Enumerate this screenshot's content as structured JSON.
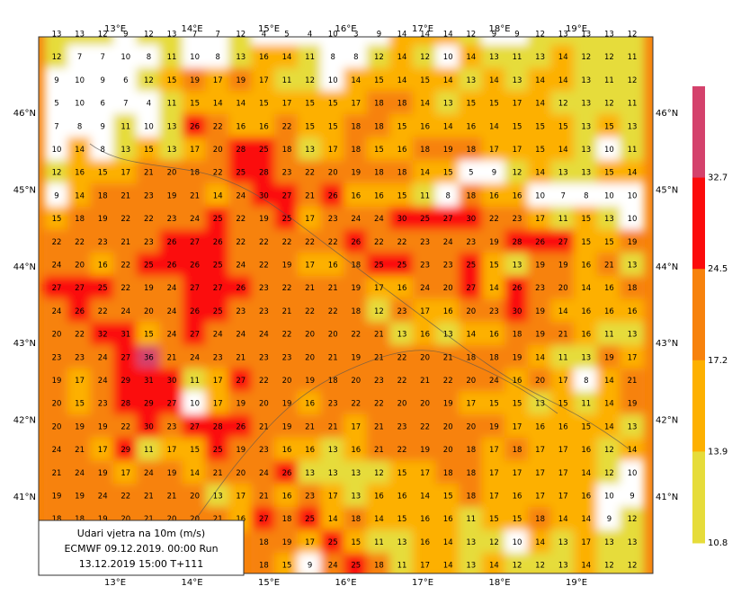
{
  "map": {
    "lon_labels": [
      "13°E",
      "14°E",
      "15°E",
      "16°E",
      "17°E",
      "18°E",
      "19°E"
    ],
    "lat_labels": [
      "46°N",
      "45°N",
      "44°N",
      "43°N",
      "42°N",
      "41°N"
    ],
    "legend": [
      "Udari vjetra na 10m (m/s)",
      "ECMWF 09.12.2019.  00:00 Run",
      "13.12.2019 15:00  T+111"
    ],
    "colorbar": {
      "labels": [
        "32.7",
        "24.5",
        "17.2",
        "13.9",
        "10.8"
      ],
      "colors": [
        "#d4426c",
        "#fb0b0b",
        "#f7820c",
        "#fdb000",
        "#e6dc3a"
      ]
    },
    "grid": {
      "rows": [
        [
          13,
          13,
          12,
          9,
          12,
          13,
          7,
          7,
          12,
          4,
          5,
          4,
          10,
          3,
          9,
          14,
          14,
          14,
          12,
          9,
          9,
          12,
          13,
          13,
          13,
          12
        ],
        [
          12,
          7,
          7,
          10,
          8,
          11,
          10,
          8,
          13,
          16,
          14,
          11,
          8,
          8,
          12,
          14,
          12,
          10,
          14,
          13,
          11,
          13,
          14,
          12,
          12,
          11
        ],
        [
          9,
          10,
          9,
          6,
          12,
          15,
          19,
          17,
          19,
          17,
          11,
          12,
          10,
          14,
          15,
          14,
          15,
          14,
          13,
          14,
          13,
          14,
          14,
          13,
          11,
          12
        ],
        [
          5,
          10,
          6,
          7,
          4,
          11,
          15,
          14,
          14,
          15,
          17,
          15,
          15,
          17,
          18,
          18,
          14,
          13,
          15,
          15,
          17,
          14,
          12,
          13,
          12,
          11
        ],
        [
          7,
          8,
          9,
          11,
          10,
          13,
          26,
          22,
          16,
          16,
          22,
          15,
          15,
          18,
          18,
          15,
          16,
          14,
          16,
          14,
          15,
          15,
          15,
          13,
          15,
          13
        ],
        [
          10,
          14,
          8,
          13,
          15,
          13,
          17,
          20,
          28,
          25,
          18,
          13,
          17,
          18,
          15,
          16,
          18,
          19,
          18,
          17,
          17,
          15,
          14,
          13,
          10,
          11
        ],
        [
          12,
          16,
          15,
          17,
          21,
          20,
          18,
          22,
          25,
          28,
          23,
          22,
          20,
          19,
          18,
          18,
          14,
          15,
          5,
          9,
          12,
          14,
          13,
          13,
          15,
          14
        ],
        [
          9,
          14,
          18,
          21,
          23,
          19,
          21,
          14,
          24,
          30,
          27,
          21,
          26,
          16,
          16,
          15,
          11,
          8,
          18,
          16,
          16,
          10,
          7,
          8,
          10,
          10
        ],
        [
          15,
          18,
          19,
          22,
          22,
          23,
          24,
          25,
          22,
          19,
          25,
          17,
          23,
          24,
          24,
          30,
          25,
          27,
          30,
          22,
          23,
          17,
          11,
          15,
          13,
          10
        ],
        [
          22,
          22,
          23,
          21,
          23,
          26,
          27,
          26,
          22,
          22,
          22,
          22,
          22,
          26,
          22,
          22,
          23,
          24,
          23,
          19,
          28,
          26,
          27,
          15,
          15,
          19
        ],
        [
          24,
          20,
          16,
          22,
          25,
          26,
          26,
          25,
          24,
          22,
          19,
          17,
          16,
          18,
          25,
          25,
          23,
          23,
          25,
          15,
          13,
          19,
          19,
          16,
          21,
          13
        ],
        [
          27,
          27,
          25,
          22,
          19,
          24,
          27,
          27,
          26,
          23,
          22,
          21,
          21,
          19,
          17,
          16,
          24,
          20,
          27,
          14,
          26,
          23,
          20,
          14,
          16,
          18
        ],
        [
          24,
          26,
          22,
          24,
          20,
          24,
          26,
          25,
          23,
          23,
          21,
          22,
          22,
          18,
          12,
          23,
          17,
          16,
          20,
          23,
          30,
          19,
          14,
          16,
          16,
          16
        ],
        [
          20,
          22,
          32,
          31,
          15,
          24,
          27,
          24,
          24,
          24,
          22,
          20,
          20,
          22,
          21,
          13,
          16,
          13,
          14,
          16,
          18,
          19,
          21,
          16,
          11,
          13
        ],
        [
          23,
          23,
          24,
          27,
          36,
          21,
          24,
          23,
          21,
          23,
          23,
          20,
          21,
          19,
          21,
          22,
          20,
          21,
          18,
          18,
          19,
          14,
          11,
          13,
          19,
          17
        ],
        [
          19,
          17,
          24,
          29,
          31,
          30,
          11,
          17,
          27,
          22,
          20,
          19,
          18,
          20,
          23,
          22,
          21,
          22,
          20,
          24,
          16,
          20,
          17,
          8,
          14,
          21
        ],
        [
          20,
          15,
          23,
          28,
          29,
          27,
          10,
          17,
          19,
          20,
          19,
          16,
          23,
          22,
          22,
          20,
          20,
          19,
          17,
          15,
          15,
          13,
          15,
          11,
          14,
          19
        ],
        [
          20,
          19,
          19,
          22,
          30,
          23,
          27,
          28,
          26,
          21,
          19,
          21,
          21,
          17,
          21,
          23,
          22,
          20,
          20,
          19,
          17,
          16,
          16,
          15,
          14,
          13
        ],
        [
          24,
          21,
          17,
          29,
          11,
          17,
          15,
          25,
          19,
          23,
          16,
          16,
          13,
          16,
          21,
          22,
          19,
          20,
          18,
          17,
          18,
          17,
          17,
          16,
          12,
          14
        ],
        [
          21,
          24,
          19,
          17,
          24,
          19,
          14,
          21,
          20,
          24,
          26,
          13,
          13,
          13,
          12,
          15,
          17,
          18,
          18,
          17,
          17,
          17,
          17,
          14,
          12,
          10
        ],
        [
          19,
          19,
          24,
          22,
          21,
          21,
          20,
          13,
          17,
          21,
          16,
          23,
          17,
          13,
          16,
          16,
          14,
          15,
          18,
          17,
          16,
          17,
          17,
          16,
          10,
          9
        ],
        [
          18,
          18,
          19,
          20,
          21,
          20,
          20,
          21,
          16,
          27,
          18,
          25,
          14,
          18,
          14,
          15,
          16,
          16,
          11,
          15,
          15,
          18,
          14,
          14,
          9,
          12
        ],
        [
          null,
          null,
          null,
          null,
          null,
          null,
          null,
          null,
          null,
          18,
          19,
          17,
          25,
          15,
          11,
          13,
          16,
          14,
          13,
          12,
          10,
          14,
          13,
          17,
          13,
          13
        ],
        [
          null,
          null,
          null,
          null,
          null,
          null,
          null,
          null,
          null,
          18,
          15,
          9,
          24,
          25,
          18,
          11,
          17,
          14,
          13,
          14,
          12,
          12,
          13,
          14,
          12,
          12
        ]
      ]
    }
  }
}
